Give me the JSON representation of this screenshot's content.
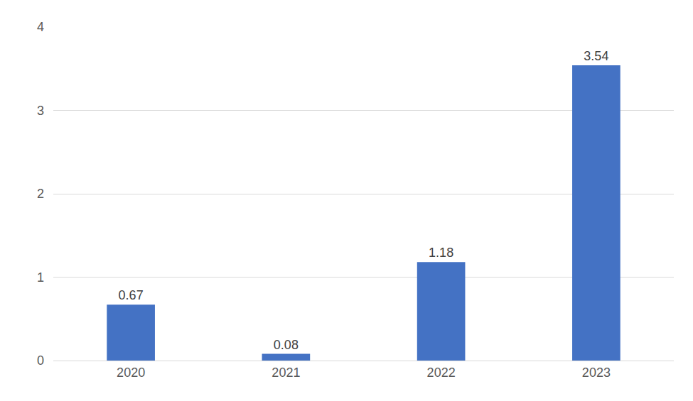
{
  "chart_data": {
    "type": "bar",
    "categories": [
      "2020",
      "2021",
      "2022",
      "2023"
    ],
    "values": [
      0.67,
      0.08,
      1.18,
      3.54
    ],
    "color": "#4472c4",
    "ylim": [
      0,
      4
    ],
    "yticks": [
      0,
      1,
      2,
      3,
      4
    ],
    "grid": true,
    "data_labels": true
  }
}
